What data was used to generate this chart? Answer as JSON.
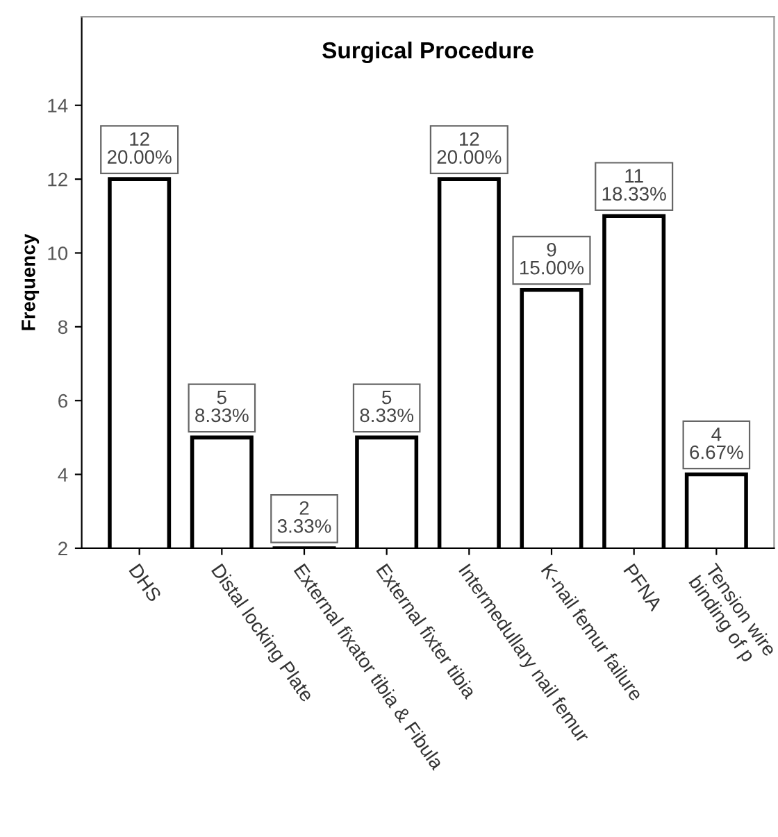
{
  "chart_data": {
    "type": "bar",
    "title": "Surgical Procedure",
    "ylabel": "Frequency",
    "categories": [
      "DHS",
      "Distal locking Plate",
      "External fixator tibia & Fibula",
      "External fixter tibia",
      "Intermedullary nail femur",
      "K-nail femur failure",
      "PFNA",
      "Tension wire\nbinding of p"
    ],
    "values": [
      12,
      5,
      2,
      5,
      12,
      9,
      11,
      4
    ],
    "value_labels": [
      "12\n20.00%",
      "5\n8.33%",
      "2\n3.33%",
      "5\n8.33%",
      "12\n20.00%",
      "9\n15.00%",
      "11\n18.33%",
      "4\n6.67%"
    ],
    "color": "#ffffff",
    "ylim": [
      2,
      16.4
    ],
    "yticks": [
      2,
      4,
      6,
      8,
      10,
      12,
      14
    ],
    "grid": false,
    "legend": false
  }
}
